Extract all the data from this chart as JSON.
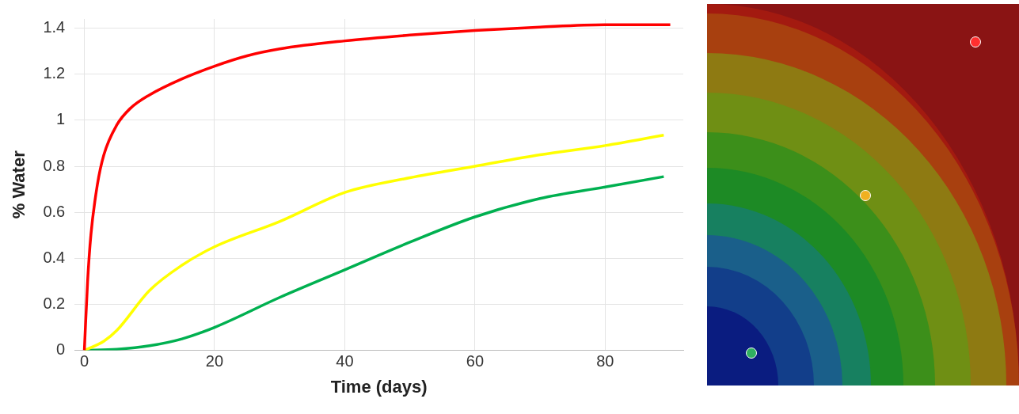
{
  "chart_data": {
    "type": "line",
    "xlabel": "Time (days)",
    "ylabel": "% Water",
    "xlim": [
      -1.5,
      92
    ],
    "ylim": [
      0,
      1.44
    ],
    "xticks": [
      0,
      20,
      40,
      60,
      80
    ],
    "yticks": [
      0,
      0.2,
      0.4,
      0.6,
      0.8,
      1,
      1.2,
      1.4
    ],
    "grid": true,
    "marker": "none",
    "line_style": "solid",
    "series": [
      {
        "color": "#ff0000",
        "x": [
          0,
          0.5,
          1,
          2,
          3,
          5,
          7,
          10,
          15,
          20,
          25,
          30,
          40,
          50,
          60,
          70,
          80,
          90
        ],
        "values": [
          0,
          0.3,
          0.5,
          0.72,
          0.85,
          0.98,
          1.05,
          1.11,
          1.18,
          1.235,
          1.28,
          1.31,
          1.345,
          1.37,
          1.39,
          1.405,
          1.415,
          1.415
        ]
      },
      {
        "color": "#ffff00",
        "x": [
          0,
          3,
          5,
          10,
          15,
          20,
          30,
          40,
          50,
          60,
          70,
          80,
          89
        ],
        "values": [
          0,
          0.04,
          0.087,
          0.26,
          0.37,
          0.45,
          0.56,
          0.686,
          0.75,
          0.8,
          0.85,
          0.89,
          0.935
        ]
      },
      {
        "color": "#00b050",
        "x": [
          0,
          5,
          10,
          15,
          20,
          30,
          40,
          50,
          60,
          70,
          80,
          89
        ],
        "values": [
          0,
          0.005,
          0.02,
          0.05,
          0.1,
          0.23,
          0.35,
          0.47,
          0.58,
          0.66,
          0.71,
          0.755
        ]
      }
    ]
  }
}
